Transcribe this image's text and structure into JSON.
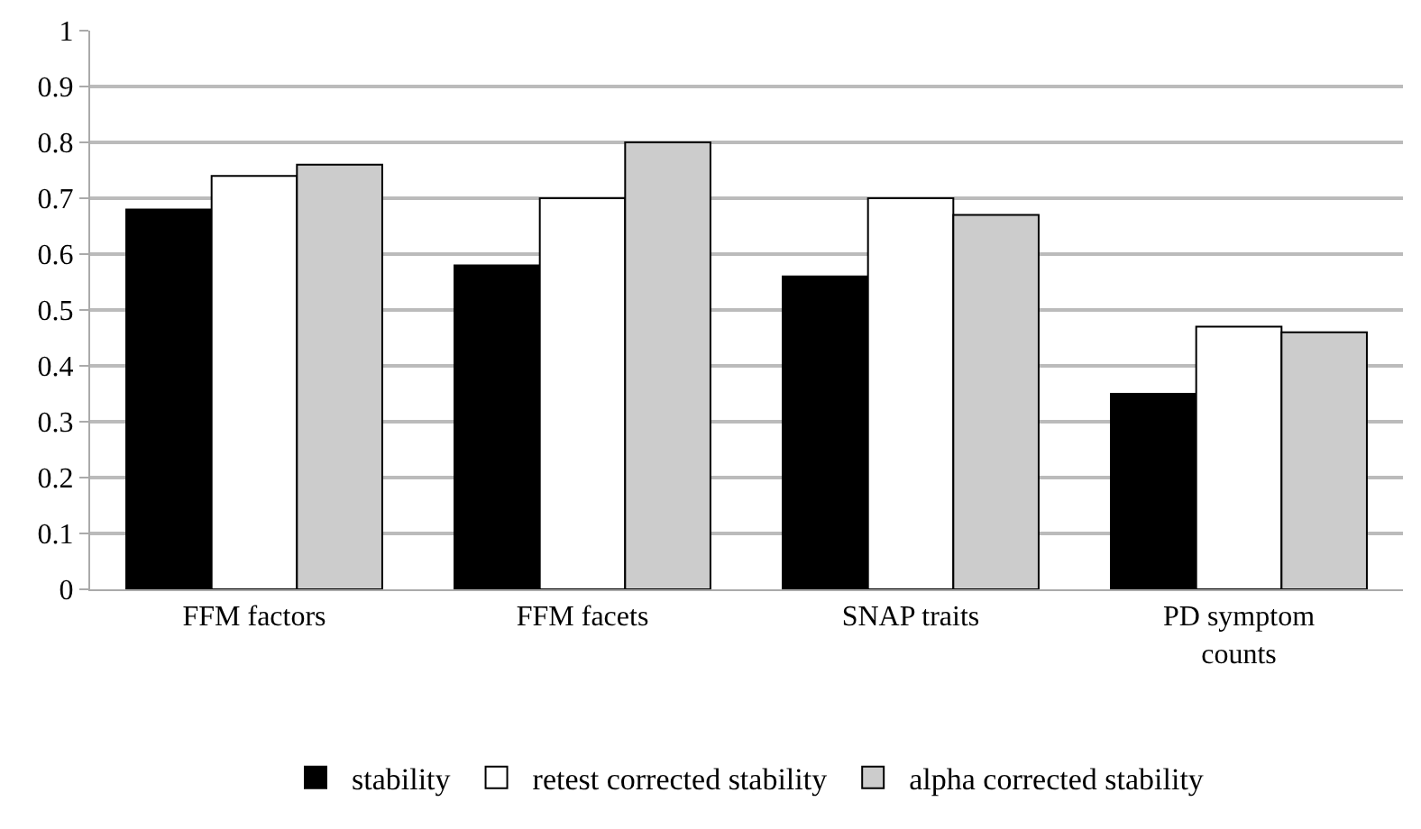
{
  "chart_data": {
    "type": "bar",
    "categories": [
      "FFM factors",
      "FFM facets",
      "SNAP traits",
      "PD symptom counts"
    ],
    "series": [
      {
        "name": "stability",
        "color": "#000000",
        "values": [
          0.68,
          0.58,
          0.56,
          0.35
        ]
      },
      {
        "name": "retest corrected stability",
        "color": "#ffffff",
        "values": [
          0.74,
          0.7,
          0.7,
          0.47
        ]
      },
      {
        "name": "alpha corrected stability",
        "color": "#cccccc",
        "values": [
          0.76,
          0.8,
          0.67,
          0.46
        ]
      }
    ],
    "ylim": [
      0,
      1
    ],
    "yticks": [
      0,
      0.1,
      0.2,
      0.3,
      0.4,
      0.5,
      0.6,
      0.7,
      0.8,
      0.9,
      1
    ],
    "grid": "y",
    "legend": "bottom"
  }
}
